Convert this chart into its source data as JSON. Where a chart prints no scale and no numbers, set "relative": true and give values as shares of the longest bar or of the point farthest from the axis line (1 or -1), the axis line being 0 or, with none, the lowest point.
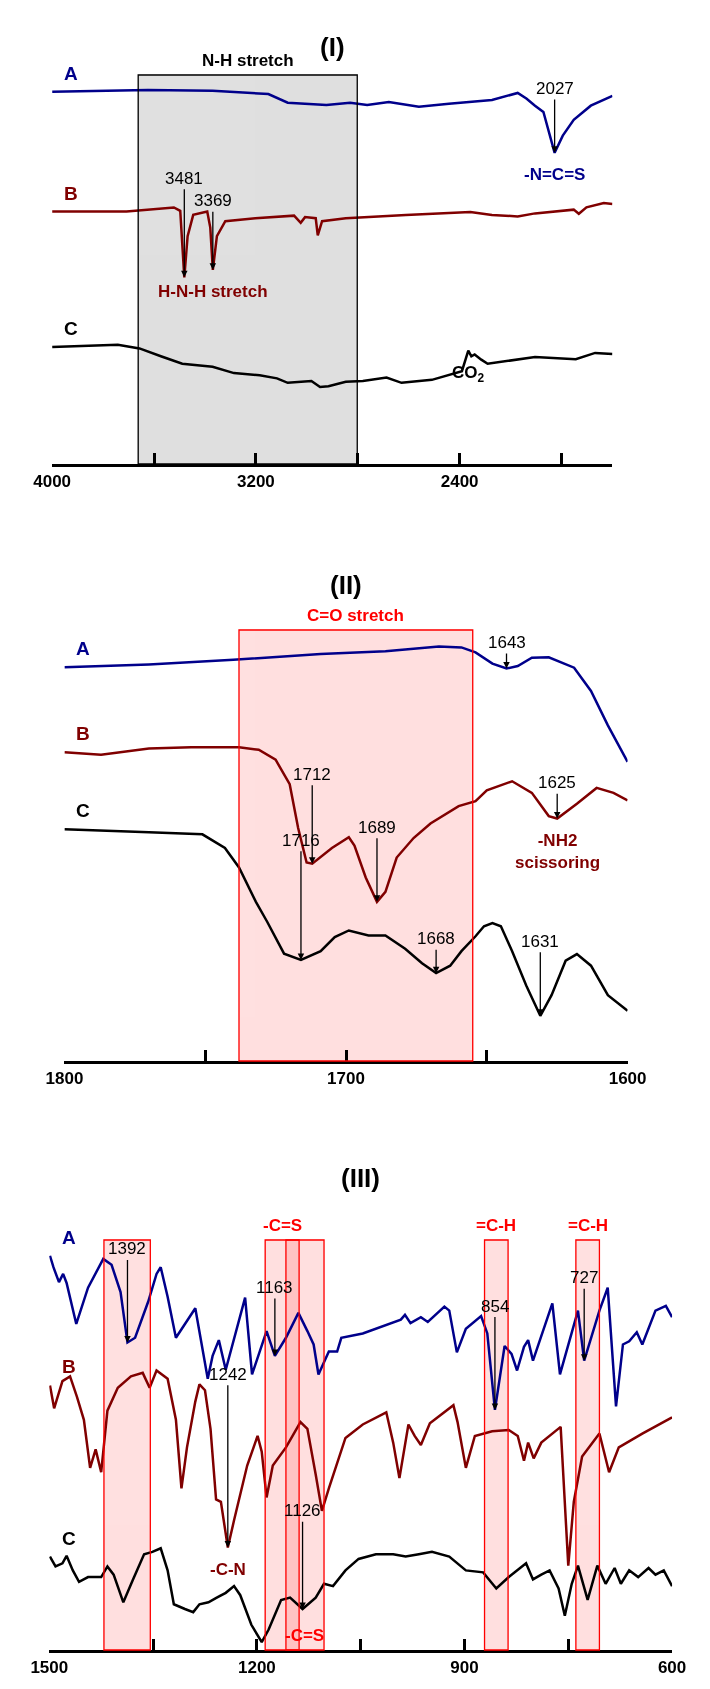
{
  "chart_data": [
    {
      "type": "line",
      "title": "(I)",
      "relative": true,
      "xlim": [
        4000,
        1800
      ],
      "xticks": [
        4000,
        {
          "value": 3600,
          "label": null
        },
        3200,
        {
          "value": 2800,
          "label": null
        },
        2400,
        {
          "value": 2000,
          "label": null
        }
      ],
      "tick_labels": "x",
      "legend": false,
      "line_style": "solid",
      "series": [
        {
          "name": "A",
          "color": "#00008b",
          "x": [
            4000,
            3624,
            3370,
            3151,
            3075,
            2923,
            2830,
            2763,
            2678,
            2560,
            2442,
            2273,
            2172,
            2138,
            2104,
            2071,
            2027,
            1995,
            1952,
            1885,
            1800
          ],
          "values": [
            0.995,
            1.0,
            0.998,
            0.989,
            0.966,
            0.96,
            0.966,
            0.96,
            0.968,
            0.955,
            0.963,
            0.973,
            0.992,
            0.977,
            0.958,
            0.941,
            0.832,
            0.878,
            0.92,
            0.958,
            0.984
          ]
        },
        {
          "name": "B",
          "color": "#800000",
          "x": [
            4000,
            3708,
            3522,
            3497,
            3481,
            3468,
            3446,
            3391,
            3379,
            3369,
            3353,
            3320,
            3202,
            3050,
            3024,
            3007,
            2965,
            2957,
            2940,
            2847,
            2611,
            2358,
            2273,
            2172,
            2104,
            1952,
            1932,
            1902,
            1834,
            1800
          ],
          "values": [
            0.675,
            0.675,
            0.686,
            0.677,
            0.499,
            0.609,
            0.666,
            0.675,
            0.632,
            0.519,
            0.609,
            0.649,
            0.657,
            0.664,
            0.645,
            0.66,
            0.657,
            0.611,
            0.649,
            0.657,
            0.666,
            0.674,
            0.666,
            0.662,
            0.67,
            0.68,
            0.669,
            0.686,
            0.698,
            0.695
          ]
        },
        {
          "name": "C",
          "color": "#000000",
          "x": [
            4000,
            3742,
            3657,
            3573,
            3489,
            3370,
            3286,
            3185,
            3117,
            3075,
            2982,
            2948,
            2915,
            2847,
            2780,
            2687,
            2628,
            2509,
            2391,
            2366,
            2354,
            2341,
            2315,
            2290,
            2104,
            1944,
            1868,
            1800
          ],
          "values": [
            0.313,
            0.319,
            0.309,
            0.288,
            0.268,
            0.26,
            0.243,
            0.237,
            0.229,
            0.217,
            0.222,
            0.206,
            0.208,
            0.22,
            0.222,
            0.231,
            0.217,
            0.225,
            0.248,
            0.303,
            0.288,
            0.293,
            0.279,
            0.268,
            0.286,
            0.28,
            0.297,
            0.294
          ]
        }
      ],
      "bands": [
        {
          "axis": "x",
          "from": 3662,
          "to": 2802,
          "label": "N-H stretch",
          "color": "#000000"
        }
      ],
      "annotations": [
        {
          "text": "2027",
          "x": 2027,
          "y": 0.832
        },
        {
          "text": "3369",
          "x": 3369,
          "y": 0.519
        },
        {
          "text": "3481",
          "x": 3481,
          "y": 0.499
        },
        {
          "text": "-N=C=S",
          "x": 2027,
          "y": 0.832
        },
        {
          "text": "H-N-H stretch",
          "x": 3369,
          "y": 0.519
        },
        {
          "text": "CO$_{2}$",
          "x": 2366,
          "y": 0.303
        }
      ]
    },
    {
      "type": "line",
      "title": "(II)",
      "relative": true,
      "xlim": [
        1800,
        1600
      ],
      "xticks": [
        1800,
        {
          "value": 1750,
          "label": null
        },
        1700,
        {
          "value": 1650,
          "label": null
        },
        1600
      ],
      "tick_labels": "x",
      "legend": false,
      "line_style": "solid",
      "series": [
        {
          "name": "A",
          "color": "#00008b",
          "x": [
            1800,
            1770,
            1740,
            1709,
            1686,
            1667,
            1659,
            1654,
            1648,
            1643,
            1639,
            1634,
            1628,
            1619,
            1613,
            1607,
            1600
          ],
          "values": [
            0.95,
            0.957,
            0.968,
            0.982,
            0.989,
            1.0,
            0.998,
            0.986,
            0.959,
            0.947,
            0.953,
            0.973,
            0.974,
            0.949,
            0.893,
            0.81,
            0.722
          ]
        },
        {
          "name": "B",
          "color": "#800000",
          "x": [
            1800,
            1787,
            1770,
            1755,
            1738,
            1731,
            1725,
            1720,
            1717,
            1714,
            1712,
            1705,
            1699,
            1697,
            1693,
            1689,
            1686,
            1682,
            1676,
            1670,
            1660,
            1654,
            1650,
            1641,
            1634,
            1628,
            1625,
            1618,
            1611,
            1605,
            1600
          ],
          "values": [
            0.745,
            0.739,
            0.754,
            0.757,
            0.757,
            0.751,
            0.727,
            0.668,
            0.562,
            0.479,
            0.476,
            0.514,
            0.54,
            0.52,
            0.443,
            0.384,
            0.408,
            0.491,
            0.538,
            0.573,
            0.615,
            0.627,
            0.653,
            0.675,
            0.647,
            0.591,
            0.585,
            0.621,
            0.659,
            0.647,
            0.629
          ]
        },
        {
          "name": "C",
          "color": "#000000",
          "x": [
            1800,
            1770,
            1751,
            1743,
            1738,
            1732,
            1728,
            1722,
            1716,
            1709,
            1704,
            1699,
            1692,
            1686,
            1679,
            1673,
            1668,
            1663,
            1659,
            1654,
            1651,
            1648,
            1645,
            1641,
            1636,
            1631,
            1627,
            1622,
            1618,
            1613,
            1607,
            1600
          ],
          "values": [
            0.559,
            0.552,
            0.547,
            0.514,
            0.467,
            0.384,
            0.336,
            0.259,
            0.244,
            0.265,
            0.299,
            0.315,
            0.303,
            0.303,
            0.271,
            0.236,
            0.212,
            0.23,
            0.265,
            0.301,
            0.325,
            0.333,
            0.325,
            0.265,
            0.182,
            0.109,
            0.159,
            0.242,
            0.258,
            0.23,
            0.159,
            0.121
          ]
        }
      ],
      "bands": [
        {
          "axis": "x",
          "from": 1738,
          "to": 1655,
          "label": "C=O stretch",
          "color": "#ff0000"
        }
      ],
      "annotations": [
        {
          "text": "1643",
          "x": 1643,
          "y": 0.947
        },
        {
          "text": "1712",
          "x": 1712,
          "y": 0.476
        },
        {
          "text": "1689",
          "x": 1689,
          "y": 0.384
        },
        {
          "text": "1625",
          "x": 1625,
          "y": 0.585
        },
        {
          "text": "1716",
          "x": 1716,
          "y": 0.244
        },
        {
          "text": "1668",
          "x": 1668,
          "y": 0.212
        },
        {
          "text": "1631",
          "x": 1631,
          "y": 0.109
        },
        {
          "text": "-NH2\nscissoring",
          "x": 1625,
          "y": 0.585
        }
      ]
    },
    {
      "type": "line",
      "title": "(III)",
      "relative": true,
      "xlim": [
        1500,
        600
      ],
      "xticks": [
        1500,
        {
          "value": 1350,
          "label": null
        },
        1200,
        {
          "value": 1050,
          "label": null
        },
        900,
        {
          "value": 750,
          "label": null
        },
        600
      ],
      "tick_labels": "x",
      "legend": false,
      "line_style": "solid",
      "series": [
        {
          "name": "A",
          "color": "#00008b",
          "x": [
            1499,
            1494,
            1486,
            1480,
            1475,
            1461,
            1444,
            1422,
            1410,
            1397,
            1387,
            1376,
            1357,
            1345,
            1339,
            1329,
            1317,
            1289,
            1271,
            1264,
            1255,
            1245,
            1217,
            1207,
            1186,
            1174,
            1158,
            1140,
            1127,
            1118,
            1111,
            1096,
            1084,
            1078,
            1047,
            992,
            986,
            978,
            963,
            953,
            929,
            922,
            911,
            898,
            876,
            867,
            856,
            842,
            832,
            824,
            814,
            808,
            801,
            773,
            762,
            736,
            727,
            705,
            693,
            681,
            671,
            662,
            651,
            643,
            624,
            609,
            600
          ],
          "values": [
            1.0,
            0.971,
            0.933,
            0.954,
            0.931,
            0.827,
            0.919,
            0.992,
            0.977,
            0.908,
            0.78,
            0.792,
            0.884,
            0.954,
            0.971,
            0.896,
            0.792,
            0.867,
            0.688,
            0.746,
            0.786,
            0.711,
            0.894,
            0.699,
            0.809,
            0.746,
            0.792,
            0.855,
            0.809,
            0.775,
            0.699,
            0.757,
            0.757,
            0.792,
            0.803,
            0.838,
            0.85,
            0.829,
            0.844,
            0.832,
            0.871,
            0.861,
            0.755,
            0.815,
            0.847,
            0.803,
            0.609,
            0.771,
            0.751,
            0.709,
            0.769,
            0.786,
            0.734,
            0.879,
            0.699,
            0.861,
            0.734,
            0.861,
            0.919,
            0.618,
            0.775,
            0.783,
            0.806,
            0.775,
            0.861,
            0.873,
            0.844
          ]
        },
        {
          "name": "B",
          "color": "#800000",
          "x": [
            1499,
            1493,
            1481,
            1470,
            1460,
            1450,
            1441,
            1433,
            1425,
            1416,
            1401,
            1382,
            1365,
            1355,
            1345,
            1329,
            1317,
            1309,
            1301,
            1289,
            1283,
            1275,
            1267,
            1259,
            1252,
            1242,
            1233,
            1214,
            1199,
            1193,
            1186,
            1177,
            1158,
            1137,
            1127,
            1115,
            1106,
            1096,
            1072,
            1047,
            1013,
            1003,
            994,
            981,
            972,
            963,
            950,
            916,
            910,
            898,
            885,
            860,
            836,
            823,
            814,
            808,
            800,
            789,
            761,
            750,
            742,
            730,
            705,
            691,
            677,
            643,
            600
          ],
          "values": [
            0.671,
            0.613,
            0.682,
            0.694,
            0.642,
            0.584,
            0.462,
            0.509,
            0.451,
            0.607,
            0.665,
            0.694,
            0.703,
            0.665,
            0.709,
            0.688,
            0.584,
            0.41,
            0.514,
            0.63,
            0.674,
            0.659,
            0.561,
            0.382,
            0.376,
            0.26,
            0.329,
            0.468,
            0.543,
            0.503,
            0.387,
            0.468,
            0.514,
            0.578,
            0.561,
            0.445,
            0.353,
            0.41,
            0.538,
            0.572,
            0.603,
            0.526,
            0.436,
            0.572,
            0.543,
            0.52,
            0.575,
            0.621,
            0.578,
            0.462,
            0.543,
            0.555,
            0.558,
            0.543,
            0.48,
            0.526,
            0.486,
            0.526,
            0.566,
            0.214,
            0.376,
            0.491,
            0.549,
            0.451,
            0.514,
            0.549,
            0.59
          ]
        },
        {
          "name": "C",
          "color": "#000000",
          "x": [
            1499,
            1491,
            1481,
            1475,
            1466,
            1457,
            1444,
            1425,
            1416,
            1407,
            1393,
            1379,
            1363,
            1351,
            1339,
            1329,
            1320,
            1304,
            1292,
            1283,
            1270,
            1258,
            1245,
            1233,
            1224,
            1208,
            1193,
            1183,
            1165,
            1152,
            1134,
            1115,
            1103,
            1090,
            1072,
            1053,
            1028,
            1003,
            985,
            966,
            947,
            922,
            898,
            873,
            854,
            836,
            811,
            801,
            789,
            777,
            764,
            755,
            745,
            736,
            722,
            708,
            696,
            683,
            674,
            662,
            649,
            634,
            624,
            612,
            600
          ],
          "values": [
            0.237,
            0.212,
            0.22,
            0.239,
            0.202,
            0.173,
            0.185,
            0.185,
            0.212,
            0.191,
            0.121,
            0.179,
            0.243,
            0.249,
            0.258,
            0.202,
            0.116,
            0.104,
            0.096,
            0.116,
            0.121,
            0.133,
            0.145,
            0.162,
            0.139,
            0.064,
            0.02,
            0.052,
            0.127,
            0.133,
            0.104,
            0.133,
            0.168,
            0.162,
            0.202,
            0.231,
            0.243,
            0.243,
            0.237,
            0.243,
            0.249,
            0.237,
            0.202,
            0.197,
            0.156,
            0.185,
            0.22,
            0.179,
            0.191,
            0.202,
            0.156,
            0.087,
            0.168,
            0.214,
            0.127,
            0.214,
            0.168,
            0.208,
            0.168,
            0.202,
            0.185,
            0.208,
            0.191,
            0.202,
            0.162
          ]
        }
      ],
      "bands": [
        {
          "axis": "x",
          "from": 1421,
          "to": 1354,
          "color": "#ff0000"
        },
        {
          "axis": "x",
          "from": 1188,
          "to": 1139,
          "label": "-C=S",
          "color": "#ff0000"
        },
        {
          "axis": "x",
          "from": 871,
          "to": 837,
          "label": "=C-H",
          "color": "#ff0000"
        },
        {
          "axis": "x",
          "from": 739,
          "to": 705,
          "label": "=C-H",
          "color": "#ff0000"
        },
        {
          "axis": "x",
          "from": 1158,
          "to": 1103,
          "label": "-C=S",
          "color": "#ff0000"
        }
      ],
      "annotations": [
        {
          "text": "1392",
          "x": 1387,
          "y": 0.78
        },
        {
          "text": "1163",
          "x": 1174,
          "y": 0.746
        },
        {
          "text": "854",
          "x": 856,
          "y": 0.609
        },
        {
          "text": "727",
          "x": 727,
          "y": 0.734
        },
        {
          "text": "1242",
          "x": 1242,
          "y": 0.26
        },
        {
          "text": "1126",
          "x": 1134,
          "y": 0.104
        },
        {
          "text": "-C-N",
          "x": 1242,
          "y": 0.26
        }
      ]
    }
  ]
}
